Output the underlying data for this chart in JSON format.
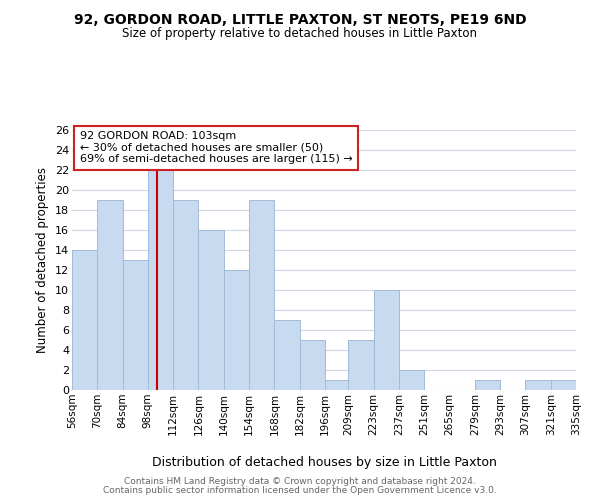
{
  "title": "92, GORDON ROAD, LITTLE PAXTON, ST NEOTS, PE19 6ND",
  "subtitle": "Size of property relative to detached houses in Little Paxton",
  "xlabel": "Distribution of detached houses by size in Little Paxton",
  "ylabel": "Number of detached properties",
  "bin_edges": [
    56,
    70,
    84,
    98,
    112,
    126,
    140,
    154,
    168,
    182,
    196,
    209,
    223,
    237,
    251,
    265,
    279,
    293,
    307,
    321,
    335
  ],
  "counts": [
    14,
    19,
    13,
    22,
    19,
    16,
    12,
    19,
    7,
    5,
    1,
    5,
    10,
    2,
    0,
    0,
    1,
    0,
    1,
    1
  ],
  "bar_color": "#c8daf0",
  "bar_edge_color": "#a0bcd8",
  "ylim": [
    0,
    26
  ],
  "yticks": [
    0,
    2,
    4,
    6,
    8,
    10,
    12,
    14,
    16,
    18,
    20,
    22,
    24,
    26
  ],
  "tick_labels": [
    "56sqm",
    "70sqm",
    "84sqm",
    "98sqm",
    "112sqm",
    "126sqm",
    "140sqm",
    "154sqm",
    "168sqm",
    "182sqm",
    "196sqm",
    "209sqm",
    "223sqm",
    "237sqm",
    "251sqm",
    "265sqm",
    "279sqm",
    "293sqm",
    "307sqm",
    "321sqm",
    "335sqm"
  ],
  "property_line_x": 103,
  "property_line_color": "#cc0000",
  "annotation_title": "92 GORDON ROAD: 103sqm",
  "annotation_line1": "← 30% of detached houses are smaller (50)",
  "annotation_line2": "69% of semi-detached houses are larger (115) →",
  "footer_line1": "Contains HM Land Registry data © Crown copyright and database right 2024.",
  "footer_line2": "Contains public sector information licensed under the Open Government Licence v3.0.",
  "background_color": "#ffffff",
  "grid_color": "#d0d8e8"
}
